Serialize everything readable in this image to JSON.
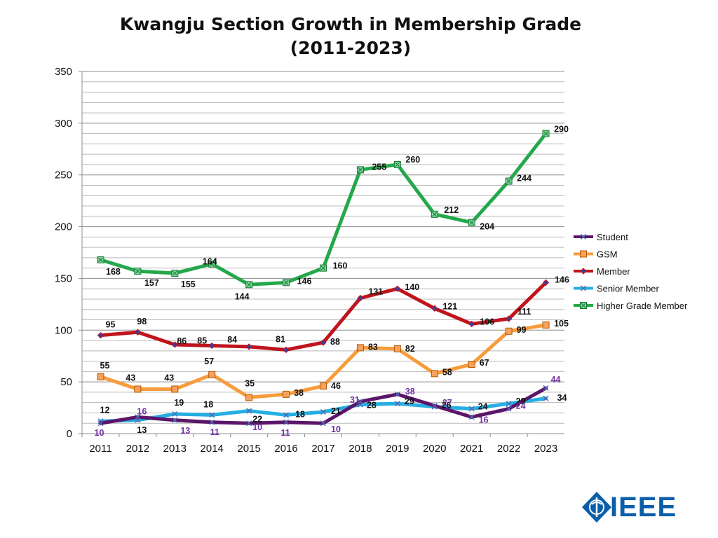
{
  "chart_data": {
    "type": "line",
    "title_line1": "Kwangju Section Growth in Membership Grade",
    "title_line2": "(2011-2023)",
    "categories": [
      "2011",
      "2012",
      "2013",
      "2014",
      "2015",
      "2016",
      "2017",
      "2018",
      "2019",
      "2020",
      "2021",
      "2022",
      "2023"
    ],
    "ylim": [
      0,
      350
    ],
    "yticks": [
      0,
      50,
      100,
      150,
      200,
      250,
      300,
      350
    ],
    "grid": true,
    "legend_position": "right",
    "series": [
      {
        "name": "Student",
        "color": "#5b1569",
        "label_color": "#7030a0",
        "marker": "x",
        "values": [
          10,
          16,
          13,
          11,
          10,
          11,
          10,
          31,
          38,
          27,
          16,
          24,
          44
        ]
      },
      {
        "name": "GSM",
        "color": "#f79c3b",
        "label_color": "#111111",
        "marker": "square",
        "values": [
          55,
          43,
          43,
          57,
          35,
          38,
          46,
          83,
          82,
          58,
          67,
          99,
          105
        ]
      },
      {
        "name": "Member",
        "color": "#c0141c",
        "label_color": "#111111",
        "marker": "diamond",
        "values": [
          95,
          98,
          86,
          85,
          84,
          81,
          88,
          131,
          140,
          121,
          106,
          111,
          146
        ]
      },
      {
        "name": "Senior Member",
        "color": "#25aee3",
        "label_color": "#111111",
        "marker": "x",
        "values": [
          12,
          13,
          19,
          18,
          22,
          18,
          21,
          28,
          29,
          26,
          24,
          29,
          34
        ]
      },
      {
        "name": "Higher Grade Member",
        "color": "#24a84a",
        "label_color": "#111111",
        "marker": "boxx",
        "values": [
          168,
          157,
          155,
          164,
          144,
          146,
          160,
          255,
          260,
          212,
          204,
          244,
          290
        ]
      }
    ]
  },
  "logo": {
    "text": "IEEE",
    "color": "#0b5ea8"
  }
}
